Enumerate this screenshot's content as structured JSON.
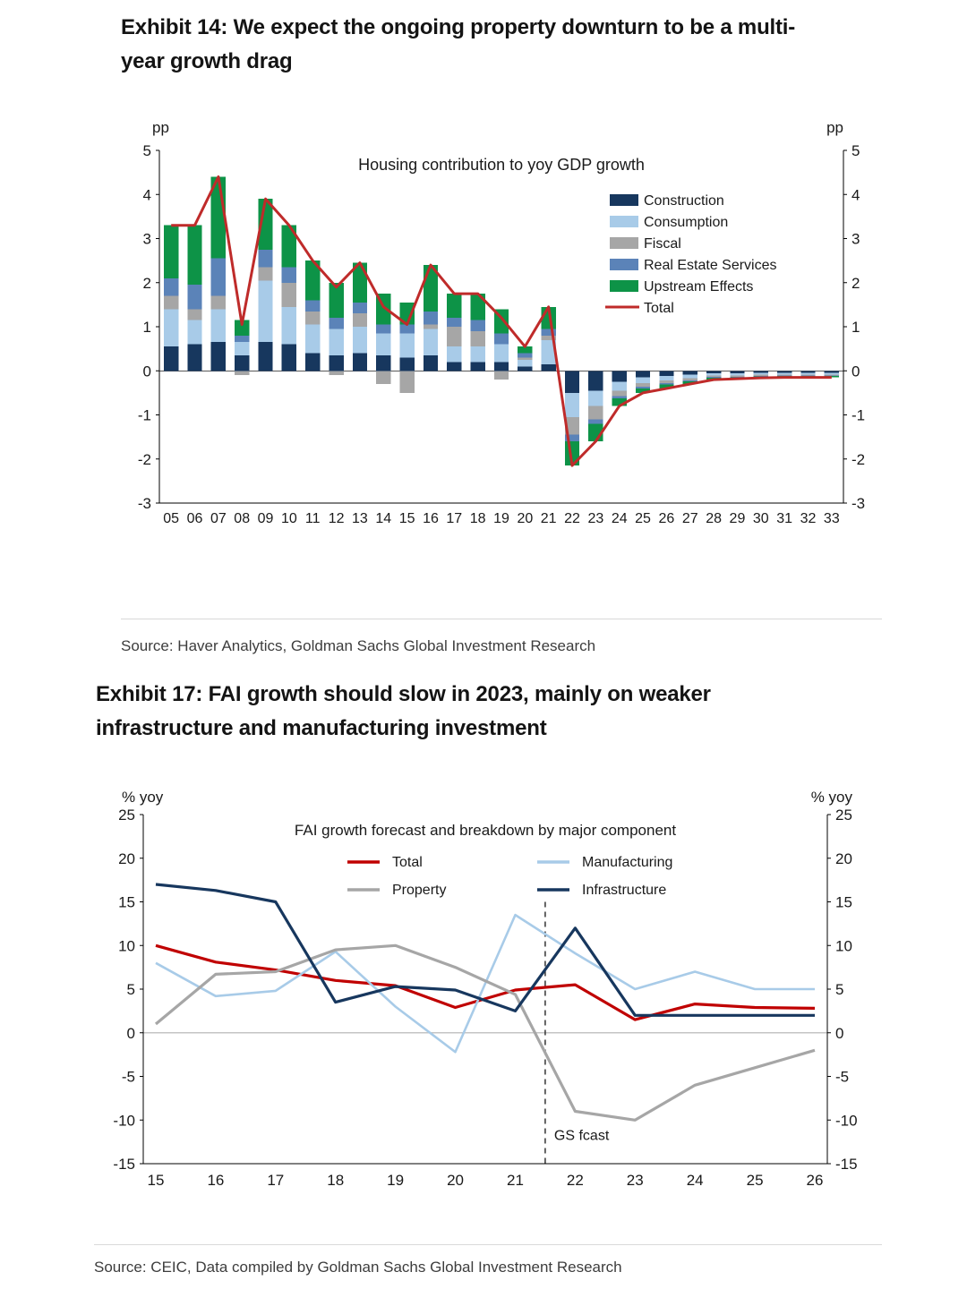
{
  "exhibit14": {
    "title": "Exhibit 14: We expect the ongoing property downturn to be a multi-year growth drag",
    "source": "Source: Haver Analytics, Goldman Sachs Global Investment Research"
  },
  "exhibit17": {
    "title": "Exhibit 17: FAI growth should slow in 2023, mainly on weaker infrastructure and manufacturing investment",
    "source": "Source: CEIC, Data compiled by Goldman Sachs Global Investment Research"
  },
  "chart_data": [
    {
      "type": "bar",
      "title": "Housing contribution to yoy GDP growth",
      "unit_label": "pp",
      "ylim": [
        -3,
        5
      ],
      "yticks": [
        5,
        4,
        3,
        2,
        1,
        0,
        -1,
        -2,
        -3
      ],
      "grid": false,
      "legend_position": "top-right-inside",
      "categories": [
        "05",
        "06",
        "07",
        "08",
        "09",
        "10",
        "11",
        "12",
        "13",
        "14",
        "15",
        "16",
        "17",
        "18",
        "19",
        "20",
        "21",
        "22",
        "23",
        "24",
        "25",
        "26",
        "27",
        "28",
        "29",
        "30",
        "31",
        "32",
        "33"
      ],
      "series": [
        {
          "name": "Construction",
          "color": "#17375e",
          "values": [
            0.55,
            0.6,
            0.65,
            0.35,
            0.65,
            0.6,
            0.4,
            0.35,
            0.4,
            0.35,
            0.3,
            0.35,
            0.2,
            0.2,
            0.2,
            0.1,
            0.15,
            -0.5,
            -0.45,
            -0.25,
            -0.15,
            -0.12,
            -0.09,
            -0.06,
            -0.06,
            -0.05,
            -0.05,
            -0.05,
            -0.05
          ]
        },
        {
          "name": "Consumption",
          "color": "#a8cbe8",
          "values": [
            0.85,
            0.55,
            0.75,
            0.3,
            1.4,
            0.85,
            0.65,
            0.6,
            0.6,
            0.5,
            0.55,
            0.6,
            0.35,
            0.35,
            0.4,
            0.15,
            0.55,
            -0.55,
            -0.35,
            -0.2,
            -0.13,
            -0.1,
            -0.08,
            -0.05,
            -0.05,
            -0.04,
            -0.04,
            -0.04,
            -0.04
          ]
        },
        {
          "name": "Fiscal",
          "color": "#a6a6a6",
          "values": [
            0.3,
            0.25,
            0.3,
            -0.1,
            0.3,
            0.55,
            0.3,
            -0.1,
            0.3,
            -0.3,
            -0.5,
            0.1,
            0.45,
            0.35,
            -0.2,
            0.05,
            0.1,
            -0.4,
            -0.3,
            -0.12,
            -0.08,
            -0.06,
            -0.05,
            -0.03,
            -0.03,
            -0.03,
            -0.02,
            -0.02,
            -0.02
          ]
        },
        {
          "name": "Real Estate Services",
          "color": "#5b83b8",
          "values": [
            0.4,
            0.55,
            0.85,
            0.15,
            0.4,
            0.35,
            0.25,
            0.25,
            0.25,
            0.2,
            0.2,
            0.3,
            0.2,
            0.25,
            0.25,
            0.1,
            0.15,
            -0.15,
            -0.1,
            -0.05,
            -0.04,
            -0.03,
            -0.02,
            -0.02,
            -0.01,
            -0.01,
            -0.01,
            -0.01,
            -0.01
          ]
        },
        {
          "name": "Upstream Effects",
          "color": "#0d9347",
          "values": [
            1.2,
            1.35,
            1.85,
            0.35,
            1.15,
            0.95,
            0.9,
            0.8,
            0.9,
            0.7,
            0.5,
            1.05,
            0.55,
            0.6,
            0.55,
            0.15,
            0.5,
            -0.55,
            -0.4,
            -0.18,
            -0.1,
            -0.09,
            -0.06,
            -0.04,
            -0.03,
            -0.03,
            -0.03,
            -0.03,
            -0.03
          ]
        }
      ],
      "line_series": {
        "name": "Total",
        "color": "#bf2b2a",
        "values": [
          3.3,
          3.3,
          4.4,
          1.05,
          3.9,
          3.3,
          2.5,
          1.9,
          2.45,
          1.45,
          1.05,
          2.4,
          1.75,
          1.75,
          1.2,
          0.55,
          1.45,
          -2.15,
          -1.6,
          -0.8,
          -0.5,
          -0.4,
          -0.3,
          -0.2,
          -0.18,
          -0.16,
          -0.15,
          -0.15,
          -0.15
        ]
      }
    },
    {
      "type": "line",
      "title": "FAI growth forecast and breakdown by major component",
      "unit_label": "% yoy",
      "ylim": [
        -15,
        25
      ],
      "yticks": [
        25,
        20,
        15,
        10,
        5,
        0,
        -5,
        -10,
        -15
      ],
      "grid": false,
      "x": [
        15,
        16,
        17,
        18,
        19,
        20,
        21,
        22,
        23,
        24,
        25,
        26
      ],
      "series": [
        {
          "name": "Total",
          "color": "#c00000",
          "width": 3.2,
          "values": [
            10,
            8.1,
            7.2,
            6,
            5.4,
            2.9,
            4.9,
            5.5,
            1.5,
            3.3,
            2.9,
            2.8
          ]
        },
        {
          "name": "Manufacturing",
          "color": "#a8cbe8",
          "width": 2.6,
          "values": [
            8,
            4.2,
            4.8,
            9.3,
            3,
            -2.2,
            13.5,
            9.1,
            5,
            7,
            5,
            5
          ]
        },
        {
          "name": "Property",
          "color": "#a6a6a6",
          "width": 3.2,
          "values": [
            1,
            6.7,
            7,
            9.5,
            10,
            7.5,
            4.4,
            -9,
            -10,
            -6,
            -4,
            -2
          ]
        },
        {
          "name": "Infrastructure",
          "color": "#17375e",
          "width": 3.2,
          "values": [
            17,
            16.3,
            15,
            3.5,
            5.3,
            4.9,
            2.5,
            12,
            2,
            2,
            2,
            2
          ]
        }
      ],
      "legend_order": [
        "Total",
        "Manufacturing",
        "Property",
        "Infrastructure"
      ],
      "forecast_line": {
        "x": 21.5,
        "label": "GS fcast"
      }
    }
  ]
}
